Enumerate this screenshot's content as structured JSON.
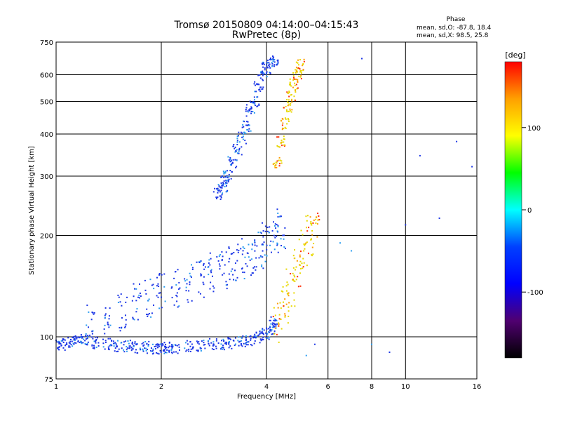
{
  "chart_data": {
    "type": "scatter",
    "title_line1": "Tromsø 20150809 04:14:00–04:15:43",
    "title_line2": "RwPretec (8p)",
    "phase_legend": {
      "heading": "Phase",
      "line_o": "mean, sd,O:  -87.8, 18.4",
      "line_x": "mean, sd,X:  98.5, 25.8"
    },
    "xlabel": "Frequency [MHz]",
    "ylabel": "Stationary phase Virtual Height [km]",
    "x_scale": "log",
    "y_scale": "log",
    "xlim": [
      1,
      16
    ],
    "ylim": [
      75,
      750
    ],
    "x_ticks": [
      1,
      2,
      4,
      6,
      8,
      10,
      16
    ],
    "x_gridlines": [
      2,
      4,
      6,
      8,
      10
    ],
    "y_ticks": [
      75,
      100,
      200,
      300,
      400,
      500,
      600,
      750
    ],
    "y_gridlines": [
      100,
      200,
      300,
      400,
      500,
      600
    ],
    "grid": true,
    "colorbar": {
      "label": "[deg]",
      "range": [
        -180,
        180
      ],
      "ticks": [
        100,
        0,
        -100
      ],
      "stops": [
        "#ff0000",
        "#ffa000",
        "#ffff00",
        "#00ff00",
        "#00ffff",
        "#0040ff",
        "#0000ff",
        "#500070",
        "#000000"
      ]
    },
    "point_colors": {
      "o_mode": "#1c36e6",
      "x_mode": "#e8d800",
      "o_alt": "#2a9df0",
      "x_alt": "#ff9a00",
      "x_red": "#ff2a00"
    },
    "series": [
      {
        "mode": "O",
        "region": "E/low F trace",
        "x": [
          1.0,
          1.05,
          1.1,
          1.15,
          1.2,
          1.3,
          1.4,
          1.5,
          1.6,
          1.7,
          1.8,
          1.9,
          2.0,
          2.1,
          2.2,
          2.4,
          2.6,
          2.8,
          3.0,
          3.2,
          3.4,
          3.6,
          3.8,
          4.0,
          4.1,
          4.2
        ],
        "y": [
          94,
          95,
          97,
          98,
          97,
          96,
          95,
          94,
          94,
          93,
          93,
          92,
          92,
          93,
          93,
          94,
          94,
          95,
          95,
          96,
          97,
          98,
          100,
          102,
          105,
          110
        ]
      },
      {
        "mode": "O",
        "region": "F1 scatter",
        "x": [
          1.25,
          1.4,
          1.55,
          1.7,
          1.85,
          2.0,
          2.2,
          2.4,
          2.6,
          2.8,
          3.0,
          3.2,
          3.4,
          3.6,
          3.8,
          4.0,
          4.2,
          4.4
        ],
        "y": [
          108,
          112,
          118,
          125,
          130,
          135,
          140,
          145,
          150,
          155,
          160,
          165,
          170,
          175,
          180,
          190,
          200,
          210
        ]
      },
      {
        "mode": "O",
        "region": "F2 trace",
        "x": [
          2.9,
          3.0,
          3.05,
          3.1,
          3.2,
          3.3,
          3.4,
          3.5,
          3.6,
          3.7,
          3.8,
          3.9,
          4.0,
          4.1,
          4.2
        ],
        "y": [
          265,
          275,
          290,
          300,
          330,
          360,
          390,
          420,
          470,
          500,
          550,
          600,
          630,
          650,
          660
        ]
      },
      {
        "mode": "X",
        "region": "F2 trace",
        "x": [
          4.3,
          4.4,
          4.5,
          4.6,
          4.7,
          4.8,
          4.9,
          5.0
        ],
        "y": [
          330,
          380,
          430,
          480,
          520,
          560,
          600,
          640
        ]
      },
      {
        "mode": "X",
        "region": "F1 scatter",
        "x": [
          4.3,
          4.5,
          4.7,
          4.9,
          5.1,
          5.3,
          5.5
        ],
        "y": [
          110,
          125,
          140,
          160,
          180,
          200,
          210
        ]
      },
      {
        "mode": "mixed",
        "region": "sparse high-frequency",
        "x": [
          5.2,
          5.5,
          6.5,
          7.0,
          7.5,
          8.0,
          9.0,
          10.0,
          11.0,
          12.5,
          14.0,
          15.5
        ],
        "y": [
          88,
          95,
          190,
          180,
          670,
          95,
          90,
          215,
          345,
          225,
          380,
          320
        ]
      }
    ]
  }
}
